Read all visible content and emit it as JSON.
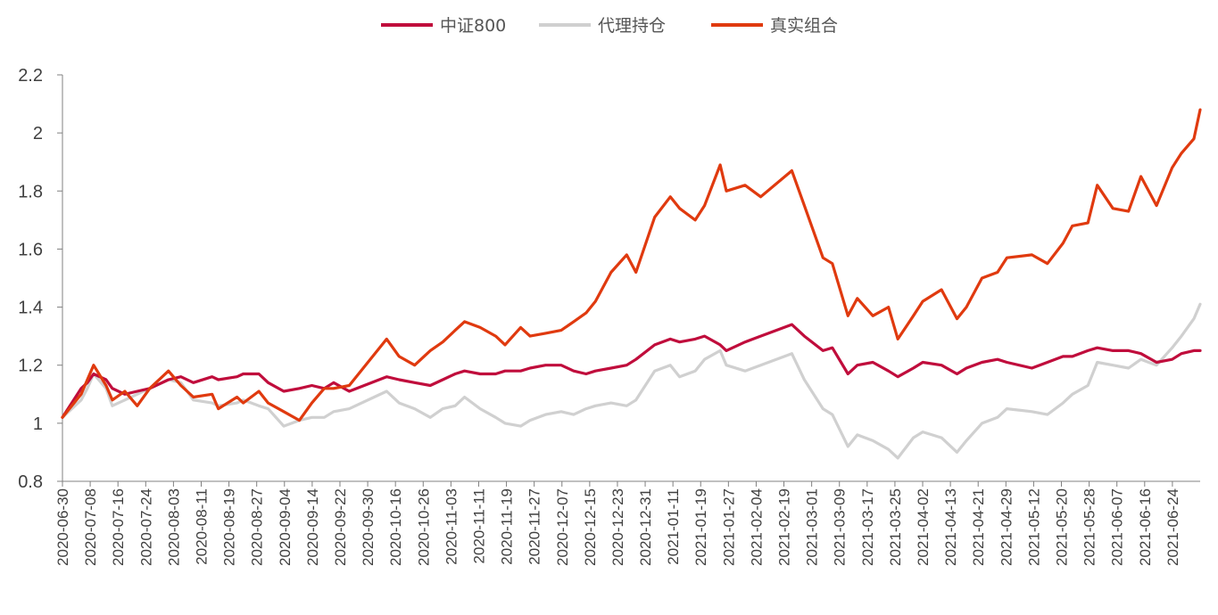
{
  "chart_data": {
    "type": "line",
    "title": "",
    "xlabel": "",
    "ylabel": "",
    "ylim": [
      0.8,
      2.2
    ],
    "yticks": [
      "0.8",
      "1",
      "1.2",
      "1.4",
      "1.6",
      "1.8",
      "2",
      "2.2"
    ],
    "x_start": "2020-06-30",
    "x_end": "2021-06-30",
    "x_tick_labels": [
      "2020-06-30",
      "2020-07-08",
      "2020-07-16",
      "2020-07-24",
      "2020-08-03",
      "2020-08-11",
      "2020-08-19",
      "2020-08-27",
      "2020-09-04",
      "2020-09-14",
      "2020-09-22",
      "2020-09-30",
      "2020-10-16",
      "2020-10-26",
      "2020-11-03",
      "2020-11-11",
      "2020-11-19",
      "2020-11-27",
      "2020-12-07",
      "2020-12-15",
      "2020-12-23",
      "2020-12-31",
      "2021-01-11",
      "2021-01-19",
      "2021-01-27",
      "2021-02-04",
      "2021-02-19",
      "2021-03-01",
      "2021-03-09",
      "2021-03-17",
      "2021-03-25",
      "2021-04-02",
      "2021-04-13",
      "2021-04-21",
      "2021-04-29",
      "2021-05-12",
      "2021-05-20",
      "2021-05-28",
      "2021-06-07",
      "2021-06-16",
      "2021-06-24"
    ],
    "legend_position": "top-center",
    "grid": false,
    "series": [
      {
        "name": "中证800",
        "color": "#c00d3c",
        "x": [
          "2020-06-30",
          "2020-07-06",
          "2020-07-08",
          "2020-07-10",
          "2020-07-14",
          "2020-07-16",
          "2020-07-20",
          "2020-07-24",
          "2020-07-28",
          "2020-08-03",
          "2020-08-07",
          "2020-08-11",
          "2020-08-17",
          "2020-08-19",
          "2020-08-25",
          "2020-08-27",
          "2020-09-01",
          "2020-09-04",
          "2020-09-09",
          "2020-09-14",
          "2020-09-18",
          "2020-09-22",
          "2020-09-25",
          "2020-09-30",
          "2020-10-12",
          "2020-10-16",
          "2020-10-21",
          "2020-10-26",
          "2020-10-30",
          "2020-11-03",
          "2020-11-06",
          "2020-11-11",
          "2020-11-16",
          "2020-11-19",
          "2020-11-24",
          "2020-11-27",
          "2020-12-02",
          "2020-12-07",
          "2020-12-11",
          "2020-12-15",
          "2020-12-18",
          "2020-12-23",
          "2020-12-28",
          "2020-12-31",
          "2021-01-06",
          "2021-01-11",
          "2021-01-14",
          "2021-01-19",
          "2021-01-22",
          "2021-01-27",
          "2021-01-29",
          "2021-02-04",
          "2021-02-09",
          "2021-02-19",
          "2021-02-23",
          "2021-03-01",
          "2021-03-04",
          "2021-03-09",
          "2021-03-12",
          "2021-03-17",
          "2021-03-22",
          "2021-03-25",
          "2021-03-30",
          "2021-04-02",
          "2021-04-08",
          "2021-04-13",
          "2021-04-16",
          "2021-04-21",
          "2021-04-26",
          "2021-04-29",
          "2021-05-07",
          "2021-05-12",
          "2021-05-17",
          "2021-05-20",
          "2021-05-25",
          "2021-05-28",
          "2021-06-02",
          "2021-06-07",
          "2021-06-11",
          "2021-06-16",
          "2021-06-21",
          "2021-06-24",
          "2021-06-28",
          "2021-06-30"
        ],
        "values": [
          1.02,
          1.12,
          1.14,
          1.17,
          1.15,
          1.12,
          1.1,
          1.11,
          1.12,
          1.15,
          1.16,
          1.14,
          1.16,
          1.15,
          1.16,
          1.17,
          1.17,
          1.14,
          1.11,
          1.12,
          1.13,
          1.12,
          1.14,
          1.11,
          1.16,
          1.15,
          1.14,
          1.13,
          1.15,
          1.17,
          1.18,
          1.17,
          1.17,
          1.18,
          1.18,
          1.19,
          1.2,
          1.2,
          1.18,
          1.17,
          1.18,
          1.19,
          1.2,
          1.22,
          1.27,
          1.29,
          1.28,
          1.29,
          1.3,
          1.27,
          1.25,
          1.28,
          1.3,
          1.34,
          1.3,
          1.25,
          1.26,
          1.17,
          1.2,
          1.21,
          1.18,
          1.16,
          1.19,
          1.21,
          1.2,
          1.17,
          1.19,
          1.21,
          1.22,
          1.21,
          1.19,
          1.21,
          1.23,
          1.23,
          1.25,
          1.26,
          1.25,
          1.25,
          1.24,
          1.21,
          1.22,
          1.24,
          1.25,
          1.25
        ]
      },
      {
        "name": "代理持仓",
        "color": "#d0d0d0",
        "x": [
          "2020-06-30",
          "2020-07-06",
          "2020-07-08",
          "2020-07-10",
          "2020-07-14",
          "2020-07-16",
          "2020-07-20",
          "2020-07-24",
          "2020-07-28",
          "2020-08-03",
          "2020-08-07",
          "2020-08-11",
          "2020-08-17",
          "2020-08-19",
          "2020-08-25",
          "2020-08-27",
          "2020-09-01",
          "2020-09-04",
          "2020-09-09",
          "2020-09-14",
          "2020-09-18",
          "2020-09-22",
          "2020-09-25",
          "2020-09-30",
          "2020-10-12",
          "2020-10-16",
          "2020-10-21",
          "2020-10-26",
          "2020-10-30",
          "2020-11-03",
          "2020-11-06",
          "2020-11-11",
          "2020-11-16",
          "2020-11-19",
          "2020-11-24",
          "2020-11-27",
          "2020-12-02",
          "2020-12-07",
          "2020-12-11",
          "2020-12-15",
          "2020-12-18",
          "2020-12-23",
          "2020-12-28",
          "2020-12-31",
          "2021-01-06",
          "2021-01-11",
          "2021-01-14",
          "2021-01-19",
          "2021-01-22",
          "2021-01-27",
          "2021-01-29",
          "2021-02-04",
          "2021-02-09",
          "2021-02-19",
          "2021-02-23",
          "2021-03-01",
          "2021-03-04",
          "2021-03-09",
          "2021-03-12",
          "2021-03-17",
          "2021-03-22",
          "2021-03-25",
          "2021-03-30",
          "2021-04-02",
          "2021-04-08",
          "2021-04-13",
          "2021-04-16",
          "2021-04-21",
          "2021-04-26",
          "2021-04-29",
          "2021-05-07",
          "2021-05-12",
          "2021-05-17",
          "2021-05-20",
          "2021-05-25",
          "2021-05-28",
          "2021-06-02",
          "2021-06-07",
          "2021-06-11",
          "2021-06-16",
          "2021-06-21",
          "2021-06-24",
          "2021-06-28",
          "2021-06-30"
        ],
        "values": [
          1.02,
          1.08,
          1.12,
          1.17,
          1.12,
          1.06,
          1.08,
          1.1,
          1.12,
          1.15,
          1.14,
          1.08,
          1.07,
          1.06,
          1.07,
          1.08,
          1.06,
          1.05,
          0.99,
          1.01,
          1.02,
          1.02,
          1.04,
          1.05,
          1.11,
          1.07,
          1.05,
          1.02,
          1.05,
          1.06,
          1.09,
          1.05,
          1.02,
          1.0,
          0.99,
          1.01,
          1.03,
          1.04,
          1.03,
          1.05,
          1.06,
          1.07,
          1.06,
          1.08,
          1.18,
          1.2,
          1.16,
          1.18,
          1.22,
          1.25,
          1.2,
          1.18,
          1.2,
          1.24,
          1.15,
          1.05,
          1.03,
          0.92,
          0.96,
          0.94,
          0.91,
          0.88,
          0.95,
          0.97,
          0.95,
          0.9,
          0.94,
          1.0,
          1.02,
          1.05,
          1.04,
          1.03,
          1.07,
          1.1,
          1.13,
          1.21,
          1.2,
          1.19,
          1.22,
          1.2,
          1.26,
          1.3,
          1.36,
          1.41
        ]
      },
      {
        "name": "真实组合",
        "color": "#e03a0f",
        "x": [
          "2020-06-30",
          "2020-07-06",
          "2020-07-08",
          "2020-07-10",
          "2020-07-14",
          "2020-07-16",
          "2020-07-20",
          "2020-07-24",
          "2020-07-28",
          "2020-08-03",
          "2020-08-07",
          "2020-08-11",
          "2020-08-17",
          "2020-08-19",
          "2020-08-25",
          "2020-08-27",
          "2020-09-01",
          "2020-09-04",
          "2020-09-09",
          "2020-09-14",
          "2020-09-18",
          "2020-09-22",
          "2020-09-25",
          "2020-09-30",
          "2020-10-12",
          "2020-10-16",
          "2020-10-21",
          "2020-10-26",
          "2020-10-30",
          "2020-11-03",
          "2020-11-06",
          "2020-11-11",
          "2020-11-16",
          "2020-11-19",
          "2020-11-24",
          "2020-11-27",
          "2020-12-02",
          "2020-12-07",
          "2020-12-11",
          "2020-12-15",
          "2020-12-18",
          "2020-12-23",
          "2020-12-28",
          "2020-12-31",
          "2021-01-06",
          "2021-01-11",
          "2021-01-14",
          "2021-01-19",
          "2021-01-22",
          "2021-01-27",
          "2021-01-29",
          "2021-02-04",
          "2021-02-09",
          "2021-02-19",
          "2021-02-23",
          "2021-03-01",
          "2021-03-04",
          "2021-03-09",
          "2021-03-12",
          "2021-03-17",
          "2021-03-22",
          "2021-03-25",
          "2021-03-30",
          "2021-04-02",
          "2021-04-08",
          "2021-04-13",
          "2021-04-16",
          "2021-04-21",
          "2021-04-26",
          "2021-04-29",
          "2021-05-07",
          "2021-05-12",
          "2021-05-17",
          "2021-05-20",
          "2021-05-25",
          "2021-05-28",
          "2021-06-02",
          "2021-06-07",
          "2021-06-11",
          "2021-06-16",
          "2021-06-21",
          "2021-06-24",
          "2021-06-28",
          "2021-06-30"
        ],
        "values": [
          1.02,
          1.1,
          1.15,
          1.2,
          1.13,
          1.08,
          1.11,
          1.06,
          1.12,
          1.18,
          1.13,
          1.09,
          1.1,
          1.05,
          1.09,
          1.07,
          1.11,
          1.07,
          1.04,
          1.01,
          1.07,
          1.12,
          1.12,
          1.13,
          1.29,
          1.23,
          1.2,
          1.25,
          1.28,
          1.32,
          1.35,
          1.33,
          1.3,
          1.27,
          1.33,
          1.3,
          1.31,
          1.32,
          1.35,
          1.38,
          1.42,
          1.52,
          1.58,
          1.52,
          1.71,
          1.78,
          1.74,
          1.7,
          1.75,
          1.89,
          1.8,
          1.82,
          1.78,
          1.87,
          1.75,
          1.57,
          1.55,
          1.37,
          1.43,
          1.37,
          1.4,
          1.29,
          1.37,
          1.42,
          1.46,
          1.36,
          1.4,
          1.5,
          1.52,
          1.57,
          1.58,
          1.55,
          1.62,
          1.68,
          1.69,
          1.82,
          1.74,
          1.73,
          1.85,
          1.75,
          1.88,
          1.93,
          1.98,
          2.08
        ]
      }
    ]
  }
}
